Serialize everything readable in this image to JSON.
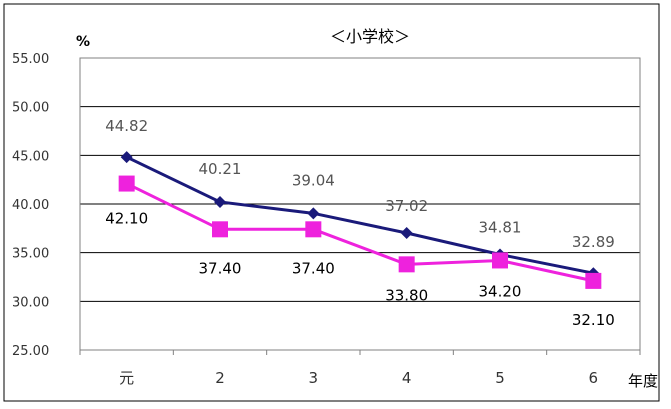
{
  "chart_data": {
    "type": "line",
    "title": "＜小学校＞",
    "ylabel": "%",
    "xlabel": "年度",
    "categories": [
      "元",
      "2",
      "3",
      "4",
      "5",
      "6"
    ],
    "ylim": [
      25.0,
      55.0
    ],
    "yticks": [
      "25.00",
      "30.00",
      "35.00",
      "40.00",
      "45.00",
      "50.00",
      "55.00"
    ],
    "grid": true,
    "series": [
      {
        "values": [
          44.82,
          40.21,
          39.04,
          37.02,
          34.81,
          32.89
        ],
        "labels": [
          "44.82",
          "40.21",
          "39.04",
          "37.02",
          "34.81",
          "32.89"
        ],
        "color": "#1a1a7a",
        "marker": "diamond"
      },
      {
        "values": [
          42.1,
          37.4,
          37.4,
          33.8,
          34.2,
          32.1
        ],
        "labels": [
          "42.10",
          "37.40",
          "37.40",
          "33.80",
          "34.20",
          "32.10"
        ],
        "color": "#ee22dd",
        "marker": "square"
      }
    ]
  }
}
